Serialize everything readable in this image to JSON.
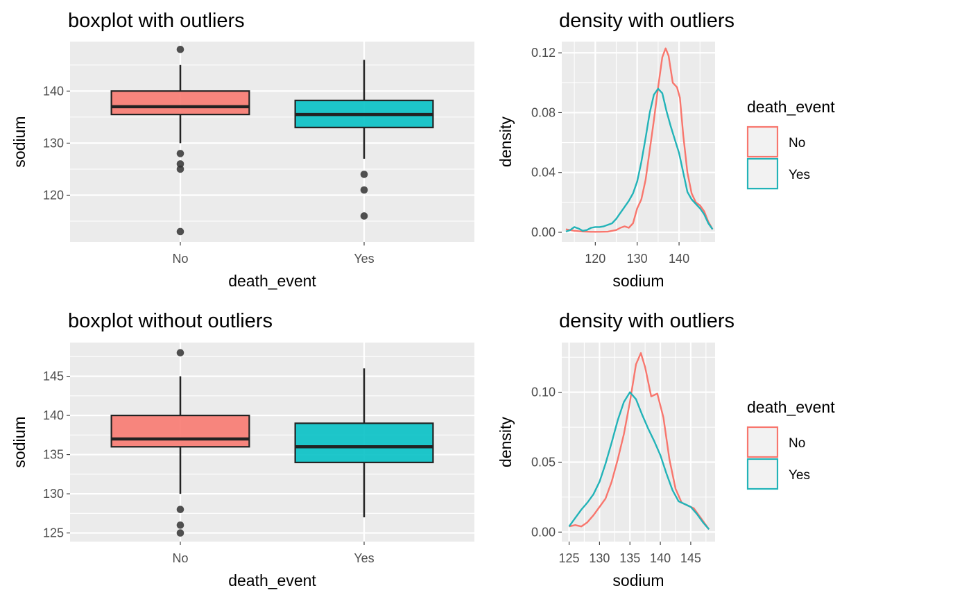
{
  "colors": {
    "panel_bg": "#EBEBEB",
    "grid": "#FFFFFF",
    "axis_text": "#4D4D4D",
    "no": "#F8766D",
    "yes": "#00BFC4",
    "no_line": "#F8766D",
    "yes_line": "#22B3B8",
    "outlier": "#333333"
  },
  "chart_data": [
    {
      "type": "boxplot",
      "title": "boxplot with outliers",
      "xlabel": "death_event",
      "ylabel": "sodium",
      "categories": [
        "No",
        "Yes"
      ],
      "ylim": [
        111,
        149.5
      ],
      "yticks": [
        120,
        130,
        140
      ],
      "grid": true,
      "boxes": [
        {
          "category": "No",
          "lower_whisker": 130,
          "q1": 135.5,
          "median": 137,
          "q3": 140,
          "upper_whisker": 145,
          "outliers": [
            148,
            128,
            126,
            125,
            113
          ]
        },
        {
          "category": "Yes",
          "lower_whisker": 127,
          "q1": 133,
          "median": 135.5,
          "q3": 138.2,
          "upper_whisker": 146,
          "outliers": [
            124,
            121,
            116
          ]
        }
      ]
    },
    {
      "type": "line",
      "title": "density with outliers",
      "xlabel": "sodium",
      "ylabel": "density",
      "xlim": [
        112,
        148.6
      ],
      "ylim": [
        -0.0065,
        0.1275
      ],
      "xticks": [
        120,
        130,
        140
      ],
      "yticks": [
        0,
        0.04,
        0.08,
        0.12
      ],
      "ytick_labels": [
        "0.00",
        "0.04",
        "0.08",
        "0.12"
      ],
      "grid": true,
      "legend": {
        "title": "death_event",
        "position": "right"
      },
      "series": [
        {
          "name": "No",
          "x": [
            113,
            115,
            117,
            119,
            121,
            123,
            125,
            126,
            127,
            128,
            129,
            130,
            131,
            132,
            133,
            134,
            135,
            136,
            136.8,
            137.5,
            138.5,
            139.5,
            140.2,
            141,
            142,
            143,
            144,
            145,
            146,
            147,
            148
          ],
          "y": [
            0.002,
            0.001,
            0.0005,
            0.0003,
            0.0003,
            0.0004,
            0.0015,
            0.003,
            0.004,
            0.003,
            0.006,
            0.016,
            0.022,
            0.035,
            0.055,
            0.075,
            0.097,
            0.117,
            0.123,
            0.118,
            0.1,
            0.097,
            0.09,
            0.065,
            0.04,
            0.026,
            0.02,
            0.018,
            0.014,
            0.007,
            0.002
          ]
        },
        {
          "name": "Yes",
          "x": [
            113,
            114,
            115,
            116,
            117,
            118,
            119,
            120,
            121,
            122,
            123,
            124,
            125,
            126,
            127,
            128,
            129,
            130,
            131,
            132,
            133,
            134,
            135,
            136,
            137,
            138,
            139,
            140,
            141,
            142,
            143,
            144,
            145,
            146,
            147,
            148
          ],
          "y": [
            0.0005,
            0.0015,
            0.0035,
            0.0025,
            0.001,
            0.0015,
            0.003,
            0.0035,
            0.0035,
            0.004,
            0.005,
            0.006,
            0.009,
            0.013,
            0.017,
            0.021,
            0.026,
            0.034,
            0.047,
            0.063,
            0.08,
            0.092,
            0.096,
            0.093,
            0.081,
            0.071,
            0.062,
            0.053,
            0.04,
            0.027,
            0.022,
            0.019,
            0.016,
            0.012,
            0.006,
            0.002
          ]
        }
      ]
    },
    {
      "type": "boxplot",
      "title": "boxplot without outliers",
      "xlabel": "death_event",
      "ylabel": "sodium",
      "categories": [
        "No",
        "Yes"
      ],
      "ylim": [
        123.9,
        149.3
      ],
      "yticks": [
        125,
        130,
        135,
        140,
        145
      ],
      "grid": true,
      "boxes": [
        {
          "category": "No",
          "lower_whisker": 130,
          "q1": 136,
          "median": 137,
          "q3": 140,
          "upper_whisker": 145,
          "outliers": [
            148,
            128,
            126,
            125
          ]
        },
        {
          "category": "Yes",
          "lower_whisker": 127,
          "q1": 134,
          "median": 136,
          "q3": 139,
          "upper_whisker": 146,
          "outliers": []
        }
      ]
    },
    {
      "type": "line",
      "title": "density with outliers",
      "xlabel": "sodium",
      "ylabel": "density",
      "xlim": [
        123.8,
        149
      ],
      "ylim": [
        -0.0068,
        0.1355
      ],
      "xticks": [
        125,
        130,
        135,
        140,
        145
      ],
      "yticks": [
        0,
        0.05,
        0.1
      ],
      "ytick_labels": [
        "0.00",
        "0.05",
        "0.10"
      ],
      "grid": true,
      "legend": {
        "title": "death_event",
        "position": "right"
      },
      "series": [
        {
          "name": "No",
          "x": [
            125,
            126,
            127,
            128,
            129,
            130,
            131,
            132,
            133,
            134,
            135,
            136,
            136.8,
            137.5,
            138.5,
            139.5,
            140.5,
            141.5,
            142.5,
            143.5,
            144.5,
            145.5,
            146.5,
            147.5,
            148
          ],
          "y": [
            0.004,
            0.005,
            0.004,
            0.007,
            0.012,
            0.018,
            0.024,
            0.036,
            0.052,
            0.07,
            0.093,
            0.12,
            0.128,
            0.118,
            0.097,
            0.099,
            0.082,
            0.052,
            0.031,
            0.021,
            0.019,
            0.017,
            0.011,
            0.005,
            0.002
          ]
        },
        {
          "name": "Yes",
          "x": [
            125,
            126,
            127,
            128,
            129,
            130,
            131,
            132,
            133,
            134,
            135,
            136,
            137,
            138,
            139,
            140,
            141,
            142,
            143,
            144,
            145,
            146,
            147,
            148
          ],
          "y": [
            0.004,
            0.01,
            0.016,
            0.021,
            0.027,
            0.036,
            0.049,
            0.064,
            0.08,
            0.093,
            0.1,
            0.095,
            0.084,
            0.074,
            0.065,
            0.055,
            0.042,
            0.03,
            0.022,
            0.02,
            0.018,
            0.013,
            0.007,
            0.002
          ]
        }
      ]
    }
  ]
}
